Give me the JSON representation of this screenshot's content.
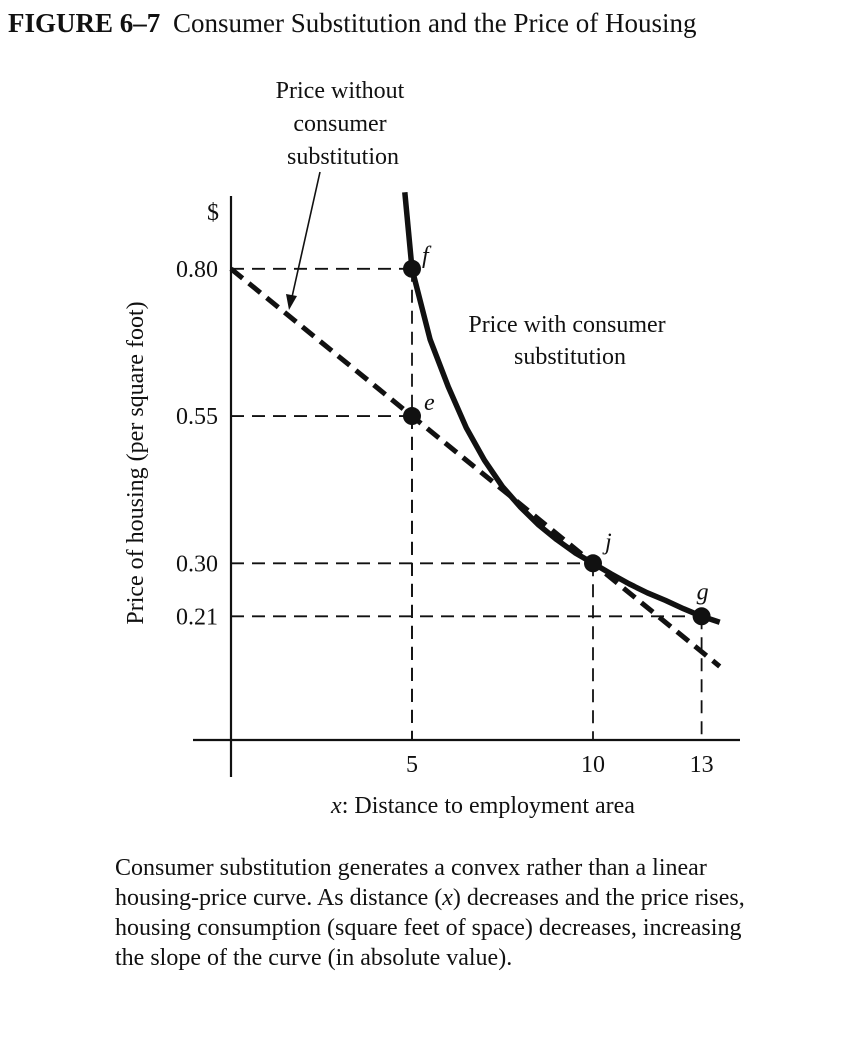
{
  "figure": {
    "number": "FIGURE 6–7",
    "title": "Consumer Substitution and the Price of Housing"
  },
  "caption": {
    "parts": [
      {
        "text": "Consumer substitution generates a convex rather than a linear housing-price curve. As distance (",
        "italic": false
      },
      {
        "text": "x",
        "italic": true
      },
      {
        "text": ") decreases and the price rises, housing consumption (square feet of space) decreases, increasing the slope of the curve (in absolute value).",
        "italic": false
      }
    ]
  },
  "chart_data": {
    "type": "line",
    "xlabel_var": "x",
    "xlabel": ": Distance to employment area",
    "ylabel": "Price of housing (per square foot)",
    "yunit": "$",
    "xlim": [
      0,
      14
    ],
    "ylim": [
      0,
      0.9
    ],
    "xticks": [
      5,
      10,
      13
    ],
    "yticks": [
      0.8,
      0.55,
      0.3,
      0.21
    ],
    "ytick_labels": [
      "0.80",
      "0.55",
      "0.30",
      "0.21"
    ],
    "series": [
      {
        "name": "Price with consumer substitution",
        "style": "solid",
        "x": [
          4.8,
          5,
          5.5,
          6,
          6.5,
          7,
          7.5,
          8,
          8.5,
          9,
          9.5,
          10,
          10.5,
          11,
          11.5,
          12,
          12.5,
          13,
          13.5
        ],
        "y": [
          0.93,
          0.8,
          0.68,
          0.6,
          0.53,
          0.475,
          0.43,
          0.395,
          0.365,
          0.34,
          0.318,
          0.3,
          0.282,
          0.265,
          0.25,
          0.237,
          0.223,
          0.21,
          0.2
        ]
      },
      {
        "name": "Price without consumer substitution",
        "style": "dashed",
        "x": [
          0,
          13.5
        ],
        "y": [
          0.8,
          0.125
        ]
      }
    ],
    "points": [
      {
        "label": "f",
        "x": 5,
        "y": 0.8
      },
      {
        "label": "e",
        "x": 5,
        "y": 0.55
      },
      {
        "label": "j",
        "x": 10,
        "y": 0.3
      },
      {
        "label": "g",
        "x": 13,
        "y": 0.21
      }
    ],
    "annotations": {
      "without_lines": [
        "Price without",
        "consumer",
        "substitution"
      ],
      "with_lines": [
        "Price with consumer",
        "substitution"
      ]
    },
    "colors": {
      "ink": "#111111"
    }
  }
}
